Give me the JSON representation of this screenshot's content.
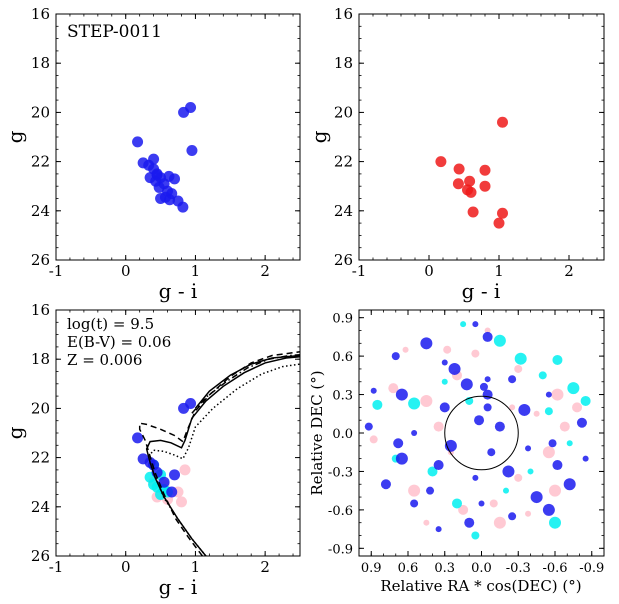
{
  "colors": {
    "member": "#1a1aee",
    "red": "#ee1a1a",
    "cyan": "#00f0f0",
    "pink": "#ffc0cb"
  },
  "chart_data": [
    {
      "type": "scatter",
      "title": "STEP-0011",
      "xlabel": "g - i",
      "ylabel": "g",
      "xlim": [
        -1,
        2.5
      ],
      "ylim": [
        26,
        16
      ],
      "x_ticks": [
        "-1",
        "0",
        "1",
        "2"
      ],
      "y_ticks": [
        "16",
        "18",
        "20",
        "22",
        "24",
        "26"
      ],
      "series": [
        {
          "color": "#1a1aee",
          "points": [
            [
              0.93,
              19.8
            ],
            [
              0.83,
              20.0
            ],
            [
              0.95,
              21.55
            ],
            [
              0.17,
              21.2
            ],
            [
              0.4,
              21.9
            ],
            [
              0.25,
              22.05
            ],
            [
              0.33,
              22.15
            ],
            [
              0.4,
              22.3
            ],
            [
              0.45,
              22.55
            ],
            [
              0.35,
              22.65
            ],
            [
              0.5,
              22.65
            ],
            [
              0.62,
              22.6
            ],
            [
              0.7,
              22.7
            ],
            [
              0.43,
              22.8
            ],
            [
              0.55,
              22.9
            ],
            [
              0.48,
              23.05
            ],
            [
              0.6,
              23.2
            ],
            [
              0.66,
              23.3
            ],
            [
              0.57,
              23.45
            ],
            [
              0.5,
              23.5
            ],
            [
              0.63,
              23.55
            ],
            [
              0.75,
              23.6
            ],
            [
              0.82,
              23.85
            ],
            [
              0.45,
              22.5
            ]
          ]
        }
      ]
    },
    {
      "type": "scatter",
      "title": "",
      "xlabel": "g - i",
      "ylabel": "g",
      "xlim": [
        -1,
        2.5
      ],
      "ylim": [
        26,
        16
      ],
      "x_ticks": [
        "-1",
        "0",
        "1",
        "2"
      ],
      "y_ticks": [
        "16",
        "18",
        "20",
        "22",
        "24",
        "26"
      ],
      "series": [
        {
          "color": "#ee1a1a",
          "points": [
            [
              1.05,
              20.4
            ],
            [
              0.17,
              22.0
            ],
            [
              0.43,
              22.3
            ],
            [
              0.8,
              22.35
            ],
            [
              0.58,
              22.8
            ],
            [
              0.42,
              22.9
            ],
            [
              0.8,
              23.0
            ],
            [
              0.55,
              23.15
            ],
            [
              0.6,
              23.25
            ],
            [
              1.05,
              24.1
            ],
            [
              0.63,
              24.05
            ],
            [
              1.0,
              24.5
            ]
          ]
        }
      ]
    },
    {
      "type": "line",
      "title": "",
      "xlabel": "g - i",
      "ylabel": "g",
      "xlim": [
        -1,
        2.5
      ],
      "ylim": [
        26,
        16
      ],
      "x_ticks": [
        "-1",
        "0",
        "1",
        "2"
      ],
      "y_ticks": [
        "16",
        "18",
        "20",
        "22",
        "24",
        "26"
      ],
      "annotations": [
        "log(t) = 9.5",
        "E(B-V) = 0.06",
        "Z = 0.006"
      ],
      "isochrones": [
        {
          "style": "solid",
          "points": [
            [
              1.15,
              26.0
            ],
            [
              0.95,
              25.3
            ],
            [
              0.75,
              24.5
            ],
            [
              0.55,
              23.6
            ],
            [
              0.42,
              22.8
            ],
            [
              0.35,
              22.2
            ],
            [
              0.3,
              21.65
            ],
            [
              0.35,
              21.35
            ],
            [
              0.5,
              21.3
            ],
            [
              0.65,
              21.4
            ],
            [
              0.8,
              21.6
            ],
            [
              0.85,
              21.3
            ],
            [
              0.95,
              20.4
            ],
            [
              1.15,
              19.7
            ],
            [
              1.4,
              19.1
            ],
            [
              1.7,
              18.55
            ],
            [
              2.0,
              18.15
            ],
            [
              2.3,
              17.95
            ],
            [
              2.5,
              17.9
            ]
          ]
        },
        {
          "style": "dashed",
          "points": [
            [
              1.1,
              26.0
            ],
            [
              0.9,
              25.25
            ],
            [
              0.72,
              24.5
            ],
            [
              0.55,
              23.5
            ],
            [
              0.42,
              22.6
            ],
            [
              0.35,
              21.95
            ],
            [
              0.28,
              21.3
            ],
            [
              0.2,
              20.85
            ],
            [
              0.2,
              20.6
            ],
            [
              0.3,
              20.65
            ],
            [
              0.5,
              20.85
            ],
            [
              0.7,
              21.1
            ],
            [
              0.82,
              21.35
            ],
            [
              0.88,
              20.9
            ],
            [
              1.0,
              20.1
            ],
            [
              1.2,
              19.45
            ],
            [
              1.5,
              18.7
            ],
            [
              1.8,
              18.15
            ],
            [
              2.1,
              17.85
            ],
            [
              2.5,
              17.7
            ]
          ]
        },
        {
          "style": "dotted",
          "points": [
            [
              1.15,
              26.0
            ],
            [
              0.95,
              25.3
            ],
            [
              0.75,
              24.5
            ],
            [
              0.55,
              23.65
            ],
            [
              0.45,
              22.95
            ],
            [
              0.37,
              22.4
            ],
            [
              0.33,
              21.95
            ],
            [
              0.4,
              21.7
            ],
            [
              0.55,
              21.75
            ],
            [
              0.7,
              21.9
            ],
            [
              0.82,
              22.05
            ],
            [
              0.9,
              21.6
            ],
            [
              1.0,
              20.75
            ],
            [
              1.25,
              20.0
            ],
            [
              1.6,
              19.2
            ],
            [
              1.95,
              18.6
            ],
            [
              2.25,
              18.3
            ],
            [
              2.5,
              18.2
            ]
          ]
        },
        {
          "style": "dashdot",
          "points": [
            [
              0.95,
              20.2
            ],
            [
              1.15,
              19.55
            ],
            [
              1.45,
              18.9
            ],
            [
              1.75,
              18.35
            ],
            [
              2.05,
              18.0
            ],
            [
              2.35,
              17.85
            ],
            [
              2.5,
              17.82
            ]
          ]
        },
        {
          "style": "solid",
          "points": [
            [
              1.0,
              20.0
            ],
            [
              1.2,
              19.3
            ],
            [
              1.5,
              18.65
            ],
            [
              1.8,
              18.2
            ],
            [
              2.1,
              17.95
            ],
            [
              2.5,
              17.85
            ]
          ]
        }
      ],
      "series": [
        {
          "color": "#ffc0cb",
          "points": [
            [
              0.85,
              22.5
            ],
            [
              0.4,
              23.0
            ],
            [
              0.55,
              23.1
            ],
            [
              0.75,
              23.4
            ],
            [
              0.8,
              23.8
            ],
            [
              0.6,
              23.7
            ],
            [
              0.45,
              23.6
            ]
          ]
        },
        {
          "color": "#00f0f0",
          "points": [
            [
              0.4,
              22.3
            ],
            [
              0.35,
              22.8
            ],
            [
              0.5,
              22.7
            ],
            [
              0.45,
              23.2
            ],
            [
              0.55,
              23.3
            ],
            [
              0.5,
              23.5
            ],
            [
              0.6,
              23.4
            ],
            [
              0.4,
              23.1
            ]
          ]
        },
        {
          "color": "#1a1aee",
          "points": [
            [
              0.93,
              19.8
            ],
            [
              0.83,
              20.0
            ],
            [
              0.17,
              21.2
            ],
            [
              0.25,
              22.05
            ],
            [
              0.4,
              22.3
            ],
            [
              0.7,
              22.7
            ],
            [
              0.55,
              23.0
            ],
            [
              0.66,
              23.4
            ],
            [
              0.45,
              22.6
            ],
            [
              0.35,
              22.2
            ]
          ]
        }
      ]
    },
    {
      "type": "scatter",
      "title": "",
      "xlabel": "Relative RA * cos(DEC) (°)",
      "ylabel": "Relative DEC (°)",
      "xlim": [
        1.0,
        -1.0
      ],
      "ylim": [
        -0.96,
        0.96
      ],
      "x_ticks": [
        "0.9",
        "0.6",
        "0.3",
        "0.0",
        "-0.3",
        "-0.6",
        "-0.9"
      ],
      "y_ticks": [
        "0.9",
        "0.6",
        "0.3",
        "0.0",
        "-0.3",
        "-0.6",
        "-0.9"
      ],
      "circle": {
        "center": [
          0.0,
          0.0
        ],
        "radius": 0.3
      },
      "series": [
        {
          "color": "#ffc0cb",
          "points": [
            [
              0.62,
              0.65
            ],
            [
              0.45,
              0.25
            ],
            [
              0.2,
              0.45
            ],
            [
              -0.3,
              0.5
            ],
            [
              -0.45,
              0.15
            ],
            [
              -0.62,
              0.3
            ],
            [
              -0.78,
              0.2
            ],
            [
              -0.3,
              -0.35
            ],
            [
              0.25,
              -0.15
            ],
            [
              0.55,
              -0.45
            ],
            [
              0.15,
              -0.6
            ],
            [
              -0.1,
              -0.55
            ],
            [
              -0.38,
              -0.63
            ],
            [
              -0.6,
              -0.45
            ],
            [
              0.72,
              0.35
            ],
            [
              0.05,
              0.62
            ],
            [
              -0.25,
              0.2
            ],
            [
              -0.55,
              -0.15
            ],
            [
              0.35,
              0.05
            ],
            [
              0.88,
              -0.05
            ],
            [
              0.45,
              -0.7
            ],
            [
              -0.15,
              -0.7
            ],
            [
              -0.68,
              0.05
            ],
            [
              0.28,
              0.65
            ],
            [
              -0.05,
              0.8
            ]
          ]
        },
        {
          "color": "#00f0f0",
          "points": [
            [
              0.15,
              0.85
            ],
            [
              -0.32,
              0.58
            ],
            [
              -0.62,
              0.57
            ],
            [
              -0.55,
              0.17
            ],
            [
              -0.72,
              -0.08
            ],
            [
              0.55,
              0.23
            ],
            [
              0.85,
              0.22
            ],
            [
              0.1,
              0.25
            ],
            [
              -0.2,
              -0.45
            ],
            [
              -0.6,
              -0.7
            ],
            [
              0.2,
              -0.55
            ],
            [
              0.05,
              -0.8
            ],
            [
              -0.4,
              -0.3
            ],
            [
              -0.75,
              0.35
            ],
            [
              0.4,
              -0.3
            ],
            [
              -0.5,
              0.45
            ],
            [
              0.3,
              0.4
            ],
            [
              -0.15,
              0.72
            ],
            [
              -0.85,
              0.25
            ],
            [
              0.7,
              -0.2
            ]
          ]
        },
        {
          "color": "#1a1aee",
          "points": [
            [
              0.05,
              0.85
            ],
            [
              0.45,
              0.7
            ],
            [
              -0.05,
              0.75
            ],
            [
              0.7,
              0.6
            ],
            [
              0.3,
              0.55
            ],
            [
              0.12,
              0.38
            ],
            [
              -0.05,
              0.3
            ],
            [
              -0.25,
              0.42
            ],
            [
              0.88,
              0.33
            ],
            [
              0.65,
              0.3
            ],
            [
              0.3,
              0.2
            ],
            [
              -0.05,
              0.2
            ],
            [
              -0.55,
              0.3
            ],
            [
              -0.35,
              0.18
            ],
            [
              -0.82,
              0.08
            ],
            [
              0.92,
              0.05
            ],
            [
              0.55,
              0.0
            ],
            [
              0.25,
              -0.1
            ],
            [
              -0.15,
              0.05
            ],
            [
              -0.58,
              -0.08
            ],
            [
              -0.85,
              -0.2
            ],
            [
              0.65,
              -0.2
            ],
            [
              0.35,
              -0.25
            ],
            [
              -0.08,
              -0.15
            ],
            [
              -0.38,
              -0.12
            ],
            [
              -0.72,
              -0.4
            ],
            [
              0.78,
              -0.4
            ],
            [
              0.42,
              -0.45
            ],
            [
              0.05,
              -0.35
            ],
            [
              -0.22,
              -0.3
            ],
            [
              -0.62,
              -0.25
            ],
            [
              0.55,
              -0.55
            ],
            [
              0.0,
              -0.55
            ],
            [
              -0.45,
              -0.5
            ],
            [
              0.1,
              -0.7
            ],
            [
              -0.25,
              -0.65
            ],
            [
              0.35,
              -0.75
            ],
            [
              -0.55,
              -0.6
            ],
            [
              0.02,
              0.1
            ],
            [
              -0.02,
              0.36
            ],
            [
              -0.05,
              0.42
            ],
            [
              0.22,
              0.5
            ],
            [
              0.68,
              -0.08
            ]
          ]
        }
      ]
    }
  ]
}
